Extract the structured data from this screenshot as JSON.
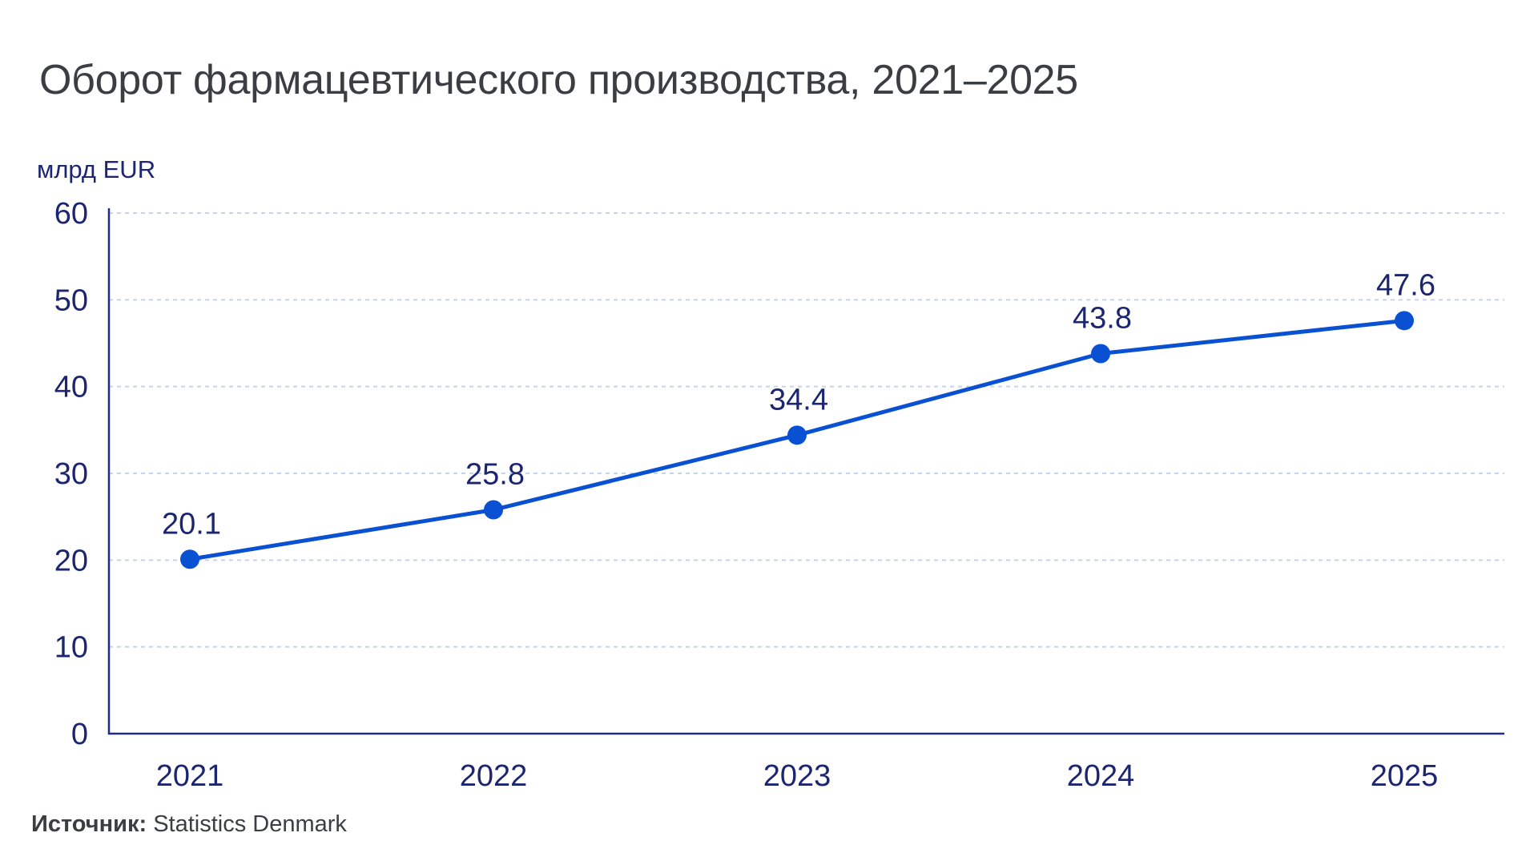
{
  "chart_data": {
    "type": "line",
    "title": "Оборот фармацевтического производства, 2021–2025",
    "ylabel": "млрд EUR",
    "xlabel": "",
    "categories": [
      "2021",
      "2022",
      "2023",
      "2024",
      "2025"
    ],
    "series": [
      {
        "values": [
          20.1,
          25.8,
          34.4,
          43.8,
          47.6
        ],
        "data_labels": [
          "20.1",
          "25.8",
          "34.4",
          "43.8",
          "47.6"
        ]
      }
    ],
    "ylim": [
      0,
      60
    ],
    "yticks": [
      0,
      10,
      20,
      30,
      40,
      50,
      60
    ],
    "grid": true,
    "grid_style": "dashed horizontal",
    "legend": "none"
  },
  "source": {
    "label": "Источник:",
    "text": " Statistics Denmark"
  },
  "colors": {
    "line": "#0a50d2",
    "axis": "#1e2a8c",
    "text": "#1b2570",
    "grid": "#c7d4e6",
    "title": "#3a3d42"
  }
}
